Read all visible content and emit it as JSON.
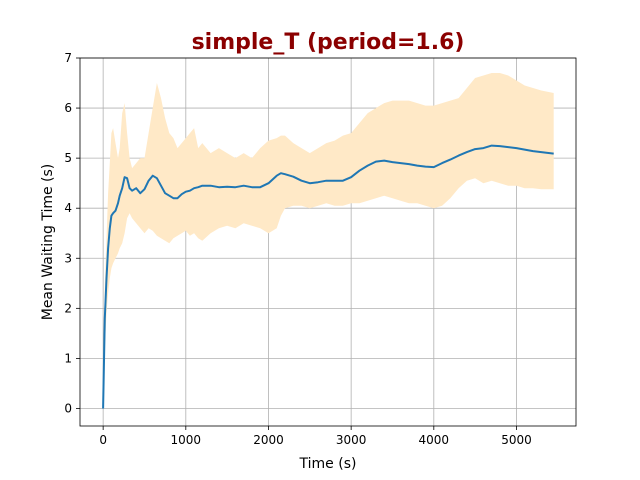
{
  "chart_data": {
    "type": "line",
    "title": "simple_T (period=1.6)",
    "xlabel": "Time (s)",
    "ylabel": "Mean Waiting Time (s)",
    "xlim": [
      -280,
      5720
    ],
    "ylim": [
      -0.35,
      7
    ],
    "xticks": [
      0,
      1000,
      2000,
      3000,
      4000,
      5000
    ],
    "yticks": [
      0,
      1,
      2,
      3,
      4,
      5,
      6,
      7
    ],
    "grid": true,
    "colors": {
      "line": "#1f77b4",
      "band": "#ffe9c7",
      "title": "#8b0000"
    },
    "series": [
      {
        "x": [
          0,
          20,
          40,
          60,
          80,
          100,
          120,
          150,
          180,
          200,
          230,
          260,
          290,
          320,
          350,
          400,
          450,
          500,
          550,
          600,
          650,
          700,
          750,
          800,
          850,
          900,
          950,
          1000,
          1050,
          1100,
          1150,
          1200,
          1300,
          1400,
          1500,
          1600,
          1700,
          1800,
          1900,
          2000,
          2100,
          2150,
          2200,
          2300,
          2400,
          2500,
          2600,
          2700,
          2800,
          2900,
          3000,
          3100,
          3200,
          3300,
          3400,
          3500,
          3600,
          3700,
          3800,
          3900,
          4000,
          4100,
          4200,
          4300,
          4400,
          4500,
          4600,
          4700,
          4800,
          4900,
          5000,
          5100,
          5200,
          5300,
          5450
        ],
        "y": [
          0,
          1.8,
          2.6,
          3.2,
          3.6,
          3.85,
          3.9,
          3.95,
          4.1,
          4.25,
          4.4,
          4.62,
          4.6,
          4.4,
          4.35,
          4.4,
          4.3,
          4.38,
          4.55,
          4.65,
          4.6,
          4.45,
          4.3,
          4.25,
          4.2,
          4.2,
          4.28,
          4.33,
          4.35,
          4.4,
          4.42,
          4.45,
          4.45,
          4.42,
          4.43,
          4.42,
          4.45,
          4.42,
          4.42,
          4.5,
          4.65,
          4.7,
          4.68,
          4.63,
          4.55,
          4.5,
          4.52,
          4.55,
          4.55,
          4.55,
          4.62,
          4.75,
          4.85,
          4.93,
          4.95,
          4.92,
          4.9,
          4.88,
          4.85,
          4.83,
          4.82,
          4.9,
          4.97,
          5.05,
          5.12,
          5.18,
          5.2,
          5.25,
          5.24,
          5.22,
          5.2,
          5.17,
          5.14,
          5.12,
          5.09
        ],
        "upper": [
          0,
          2.5,
          3.4,
          4.3,
          4.9,
          5.5,
          5.6,
          5.3,
          5.0,
          5.2,
          5.9,
          6.1,
          5.5,
          5.0,
          4.8,
          4.9,
          5.0,
          5.0,
          5.5,
          6.0,
          6.5,
          6.2,
          5.8,
          5.5,
          5.4,
          5.2,
          5.3,
          5.4,
          5.5,
          5.6,
          5.2,
          5.3,
          5.1,
          5.2,
          5.1,
          5.0,
          5.1,
          5.0,
          5.2,
          5.35,
          5.4,
          5.45,
          5.45,
          5.3,
          5.2,
          5.1,
          5.2,
          5.3,
          5.35,
          5.45,
          5.5,
          5.7,
          5.9,
          6.0,
          6.1,
          6.15,
          6.15,
          6.15,
          6.1,
          6.05,
          6.05,
          6.1,
          6.15,
          6.2,
          6.4,
          6.6,
          6.65,
          6.7,
          6.7,
          6.65,
          6.55,
          6.45,
          6.4,
          6.35,
          6.3
        ],
        "lower": [
          0,
          1.2,
          1.9,
          2.3,
          2.6,
          2.8,
          2.9,
          3.0,
          3.1,
          3.2,
          3.3,
          3.5,
          3.8,
          3.9,
          3.8,
          3.7,
          3.6,
          3.5,
          3.6,
          3.55,
          3.45,
          3.4,
          3.35,
          3.3,
          3.4,
          3.45,
          3.5,
          3.55,
          3.45,
          3.5,
          3.4,
          3.35,
          3.5,
          3.6,
          3.65,
          3.6,
          3.7,
          3.65,
          3.6,
          3.5,
          3.6,
          3.85,
          4.0,
          4.05,
          4.05,
          4.0,
          4.05,
          4.1,
          4.05,
          4.05,
          4.1,
          4.1,
          4.15,
          4.2,
          4.25,
          4.2,
          4.15,
          4.1,
          4.1,
          4.05,
          4.0,
          4.05,
          4.2,
          4.4,
          4.55,
          4.6,
          4.5,
          4.55,
          4.5,
          4.45,
          4.45,
          4.4,
          4.4,
          4.38,
          4.38
        ]
      }
    ]
  }
}
